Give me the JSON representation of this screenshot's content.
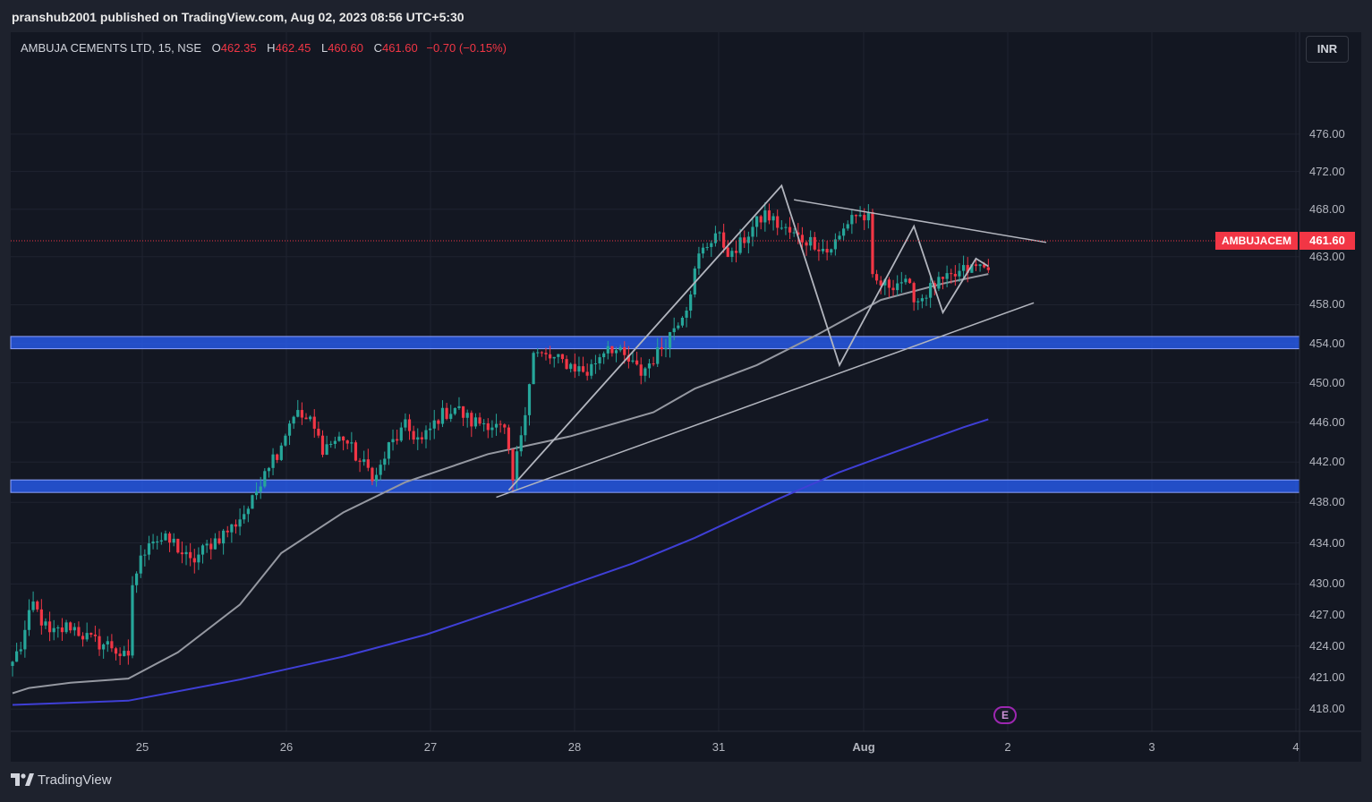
{
  "header": {
    "published_by": "pranshub2001 published on TradingView.com, Aug 02, 2023 08:56 UTC+5:30"
  },
  "legend": {
    "symbol": "AMBUJA CEMENTS LTD, 15, NSE",
    "o_label": "O",
    "o_value": "462.35",
    "h_label": "H",
    "h_value": "462.45",
    "l_label": "L",
    "l_value": "460.60",
    "c_label": "C",
    "c_value": "461.60",
    "change": "−0.70 (−0.15%)"
  },
  "currency": "INR",
  "last_price": {
    "symbol": "AMBUJACEM",
    "value": "461.60"
  },
  "event_marker": "E",
  "footer": {
    "brand": "TradingView",
    "logo_icon": "tradingview-logo-icon"
  },
  "colors": {
    "background": "#131722",
    "up": "#26a69a",
    "down": "#f23645",
    "ema_fast": "#9598a1",
    "ema_slow": "#3f3fd6",
    "zone": "#2962ff",
    "drawing": "#b2b5be"
  },
  "chart_data": {
    "type": "candlestick",
    "interval": "15",
    "y_scale": "log",
    "ylim": [
      416.5,
      482
    ],
    "y_ticks": [
      "476.00",
      "472.00",
      "468.00",
      "463.00",
      "458.00",
      "454.00",
      "450.00",
      "446.00",
      "442.00",
      "438.00",
      "434.00",
      "430.00",
      "427.00",
      "424.00",
      "421.00",
      "418.00"
    ],
    "x_ticks": [
      "25",
      "26",
      "27",
      "28",
      "31",
      "Aug",
      "2",
      "3",
      "4"
    ],
    "close_path": [
      [
        0,
        422.5
      ],
      [
        2,
        424.0
      ],
      [
        5,
        428.0
      ],
      [
        9,
        425.0
      ],
      [
        14,
        426.0
      ],
      [
        19,
        424.5
      ],
      [
        24,
        424.0
      ],
      [
        28,
        422.5
      ],
      [
        29,
        430.0
      ],
      [
        33,
        434.5
      ],
      [
        39,
        434.0
      ],
      [
        43,
        432.0
      ],
      [
        48,
        434.0
      ],
      [
        53,
        435.5
      ],
      [
        58,
        438.0
      ],
      [
        61,
        441.5
      ],
      [
        64,
        443.0
      ],
      [
        68,
        447.0
      ],
      [
        72,
        446.0
      ],
      [
        75,
        443.5
      ],
      [
        80,
        444.5
      ],
      [
        84,
        442.0
      ],
      [
        88,
        440.5
      ],
      [
        91,
        443.5
      ],
      [
        95,
        445.5
      ],
      [
        99,
        444.0
      ],
      [
        103,
        446.5
      ],
      [
        107,
        447.5
      ],
      [
        111,
        446.0
      ],
      [
        115,
        446.0
      ],
      [
        119,
        445.0
      ],
      [
        121,
        440.0
      ],
      [
        124,
        447.5
      ],
      [
        126,
        453.0
      ],
      [
        130,
        452.5
      ],
      [
        134,
        452.0
      ],
      [
        139,
        451.0
      ],
      [
        144,
        454.0
      ],
      [
        148,
        452.5
      ],
      [
        152,
        451.0
      ],
      [
        156,
        453.0
      ],
      [
        159,
        455.0
      ],
      [
        163,
        458.0
      ],
      [
        166,
        463.0
      ],
      [
        170,
        465.5
      ],
      [
        174,
        463.0
      ],
      [
        178,
        465.5
      ],
      [
        182,
        467.5
      ],
      [
        186,
        466.0
      ],
      [
        190,
        465.0
      ],
      [
        194,
        464.5
      ],
      [
        197,
        463.5
      ],
      [
        200,
        465.0
      ],
      [
        203,
        467.5
      ],
      [
        207,
        467.0
      ],
      [
        208,
        460.5
      ],
      [
        211,
        460.0
      ],
      [
        215,
        460.5
      ],
      [
        219,
        458.5
      ],
      [
        223,
        460.0
      ],
      [
        226,
        460.5
      ],
      [
        230,
        461.5
      ],
      [
        234,
        462.0
      ],
      [
        236,
        461.6
      ]
    ],
    "overlays": [
      {
        "type": "ema",
        "points": [
          [
            0,
            419.5
          ],
          [
            4,
            420.0
          ],
          [
            14,
            420.5
          ],
          [
            28,
            420.9
          ],
          [
            40,
            423.4
          ],
          [
            55,
            428.0
          ],
          [
            65,
            433.0
          ],
          [
            80,
            437.0
          ],
          [
            95,
            440.0
          ],
          [
            115,
            442.8
          ],
          [
            135,
            444.6
          ],
          [
            155,
            447.0
          ],
          [
            165,
            449.4
          ],
          [
            180,
            451.8
          ],
          [
            195,
            455.0
          ],
          [
            210,
            458.5
          ],
          [
            225,
            460.2
          ],
          [
            236,
            461.2
          ]
        ]
      },
      {
        "type": "ema",
        "points": [
          [
            0,
            418.4
          ],
          [
            28,
            418.8
          ],
          [
            55,
            420.8
          ],
          [
            80,
            423.0
          ],
          [
            100,
            425.1
          ],
          [
            120,
            427.8
          ],
          [
            150,
            432.0
          ],
          [
            165,
            434.5
          ],
          [
            185,
            438.3
          ],
          [
            200,
            441.0
          ],
          [
            210,
            442.5
          ],
          [
            220,
            444.0
          ],
          [
            230,
            445.5
          ],
          [
            236,
            446.3
          ]
        ]
      }
    ],
    "zones": [
      {
        "from": 453.7,
        "to": 454.5
      },
      {
        "from": 439.2,
        "to": 440.0
      }
    ]
  }
}
